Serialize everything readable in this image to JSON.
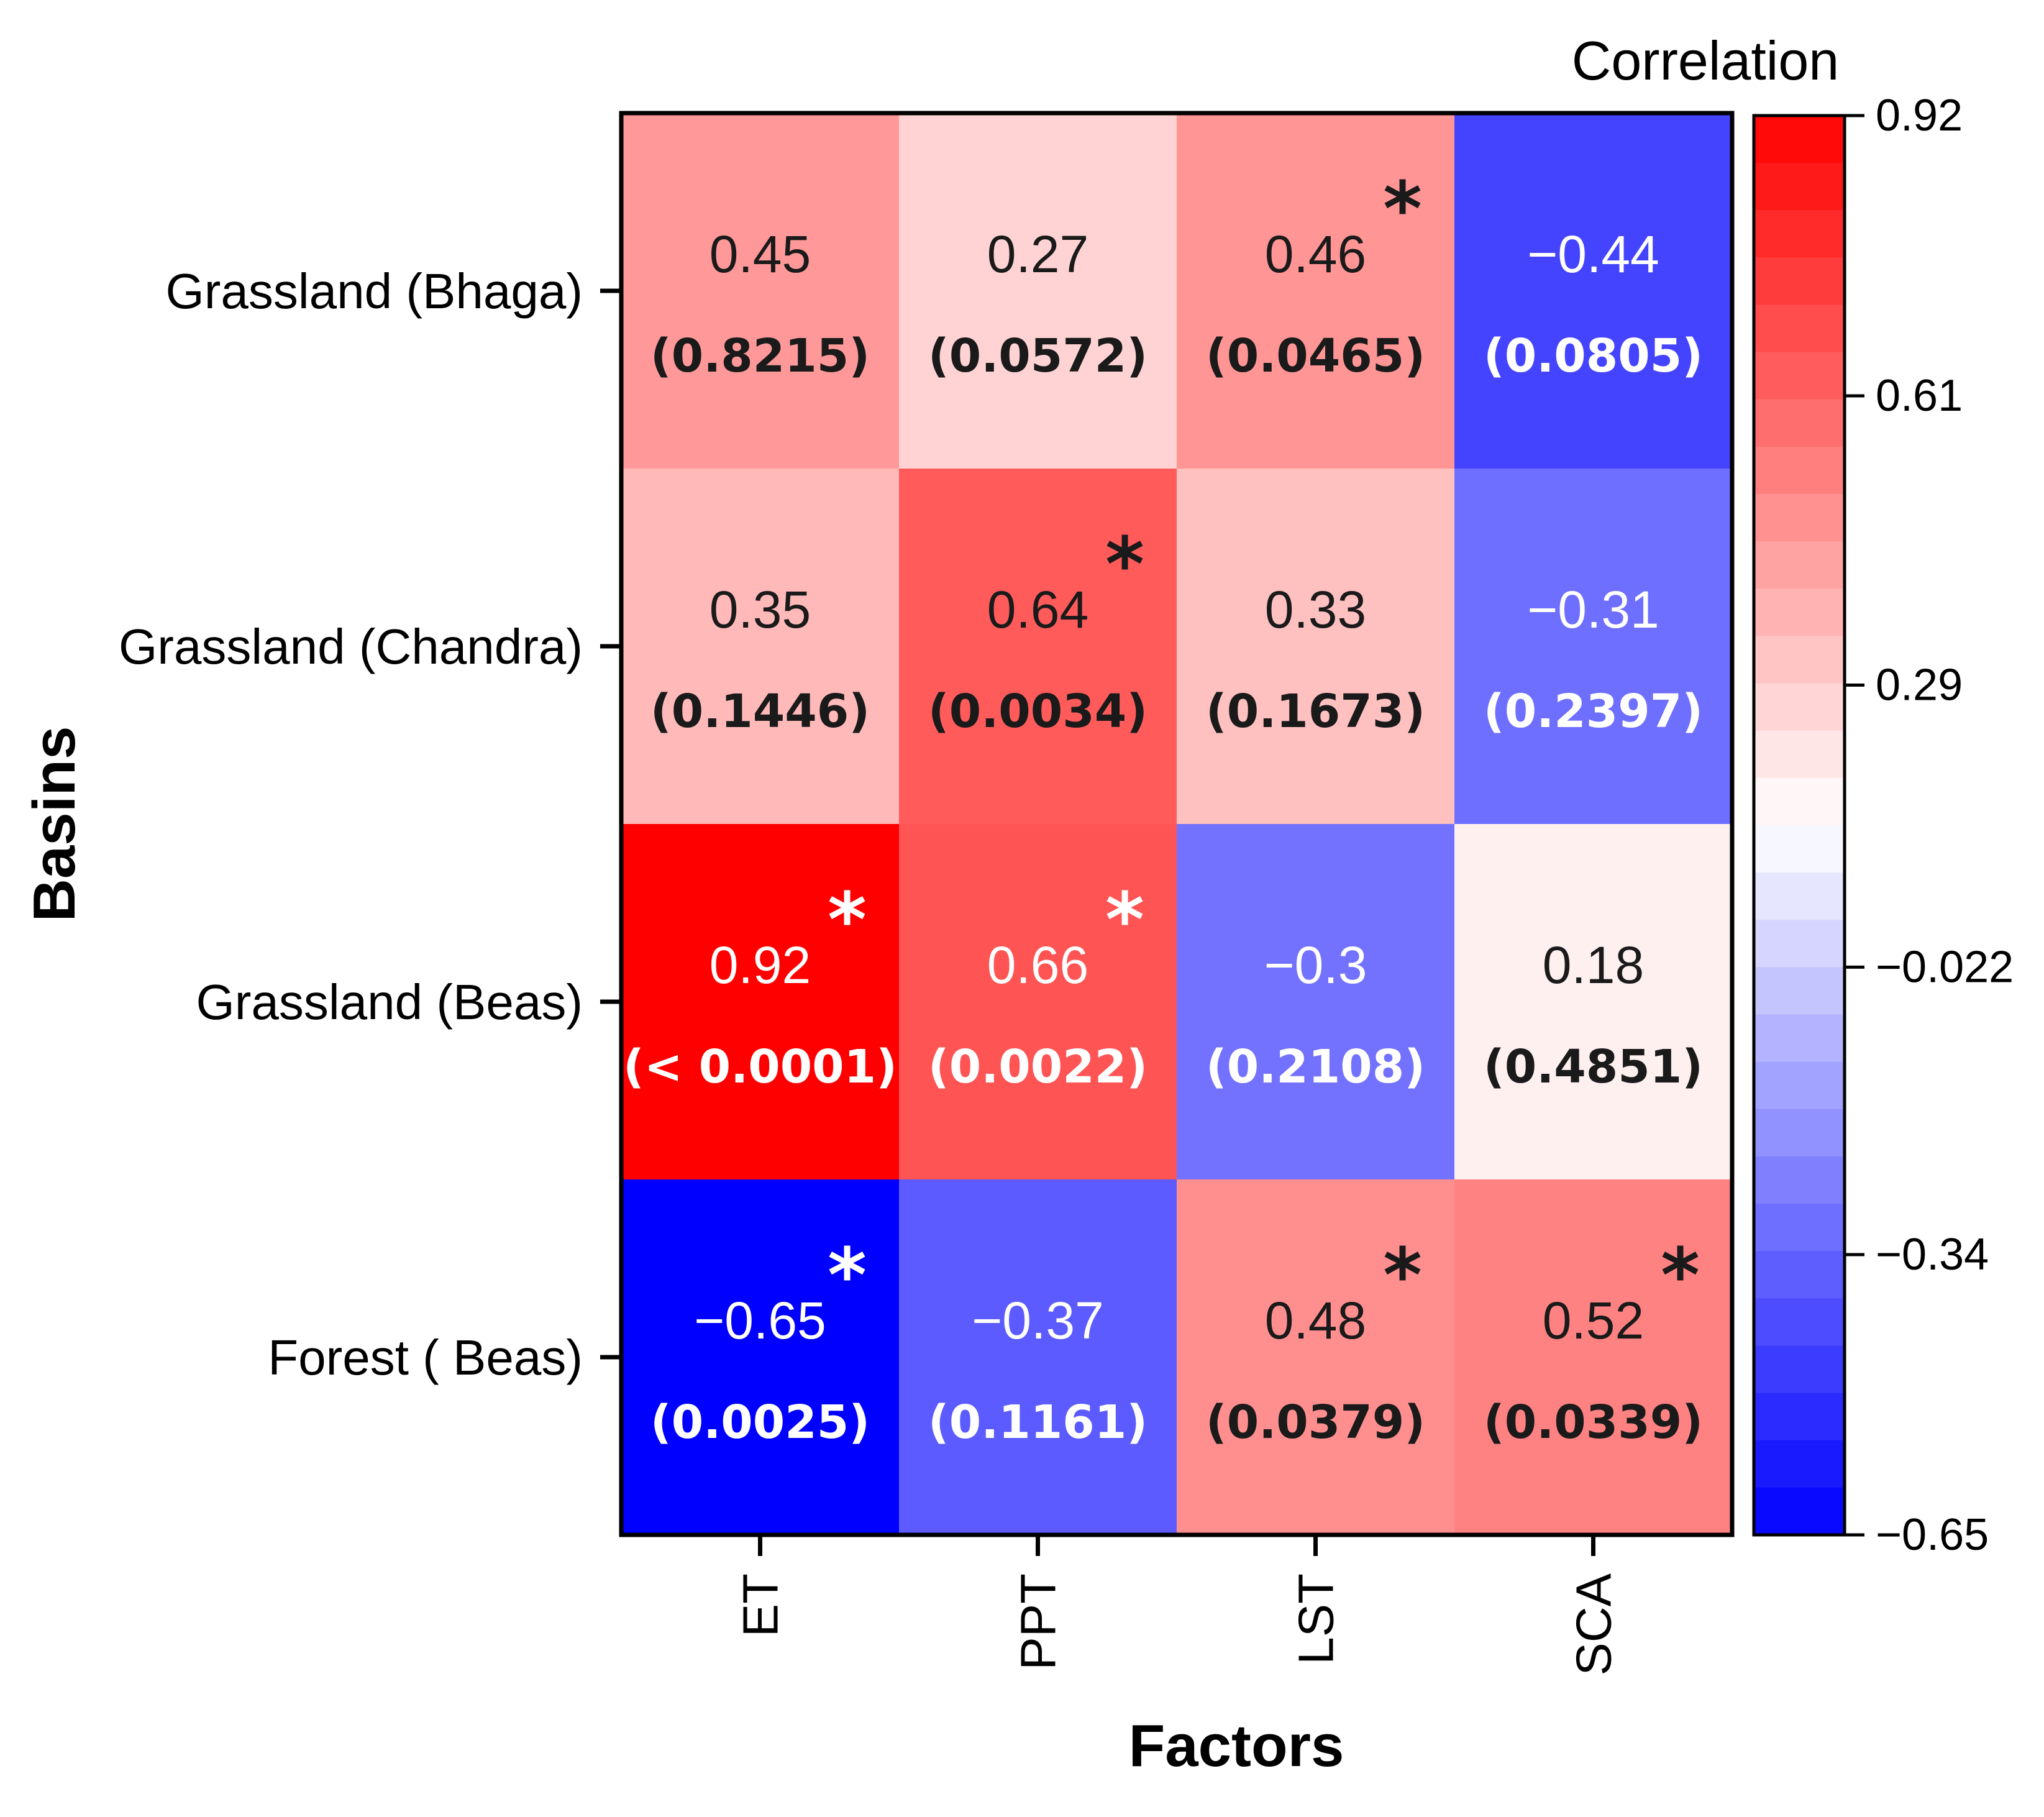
{
  "chart_data": {
    "type": "heatmap",
    "title": "",
    "xlabel": "Factors",
    "ylabel": "Basins",
    "x_categories": [
      "ET",
      "PPT",
      "LST",
      "SCA"
    ],
    "y_categories": [
      "Grassland (Bhaga)",
      "Grassland (Chandra)",
      "Grassland (Beas)",
      "Forest ( Beas)"
    ],
    "values": [
      [
        0.45,
        0.27,
        0.46,
        -0.44
      ],
      [
        0.35,
        0.64,
        0.33,
        -0.31
      ],
      [
        0.92,
        0.66,
        -0.3,
        0.18
      ],
      [
        -0.65,
        -0.37,
        0.48,
        0.52
      ]
    ],
    "value_labels": [
      [
        "0.45",
        "0.27",
        "0.46",
        "−0.44"
      ],
      [
        "0.35",
        "0.64",
        "0.33",
        "−0.31"
      ],
      [
        "0.92",
        "0.66",
        "−0.3",
        "0.18"
      ],
      [
        "−0.65",
        "−0.37",
        "0.48",
        "0.52"
      ]
    ],
    "p_values": [
      [
        "(0.8215)",
        "(0.0572)",
        "(0.0465)",
        "(0.0805)"
      ],
      [
        "(0.1446)",
        "(0.0034)",
        "(0.1673)",
        "(0.2397)"
      ],
      [
        "(< 0.0001)",
        "(0.0022)",
        "(0.2108)",
        "(0.4851)"
      ],
      [
        "(0.0025)",
        "(0.1161)",
        "(0.0379)",
        "(0.0339)"
      ]
    ],
    "significant": [
      [
        false,
        false,
        true,
        false
      ],
      [
        false,
        true,
        false,
        false
      ],
      [
        true,
        true,
        false,
        false
      ],
      [
        true,
        false,
        true,
        true
      ]
    ],
    "significance_marker": "*",
    "colorbar": {
      "title": "Correlation",
      "min": -0.65,
      "max": 0.92,
      "tick_values": [
        0.92,
        0.61,
        0.29,
        -0.022,
        -0.34,
        -0.65
      ],
      "tick_labels": [
        "0.92",
        "0.61",
        "0.29",
        "−0.022",
        "−0.34",
        "−0.65"
      ],
      "low_color": "#0000ff",
      "mid_color": "#ffffff",
      "high_color": "#ff0000",
      "midpoint": 0.135,
      "bands": 30
    }
  }
}
